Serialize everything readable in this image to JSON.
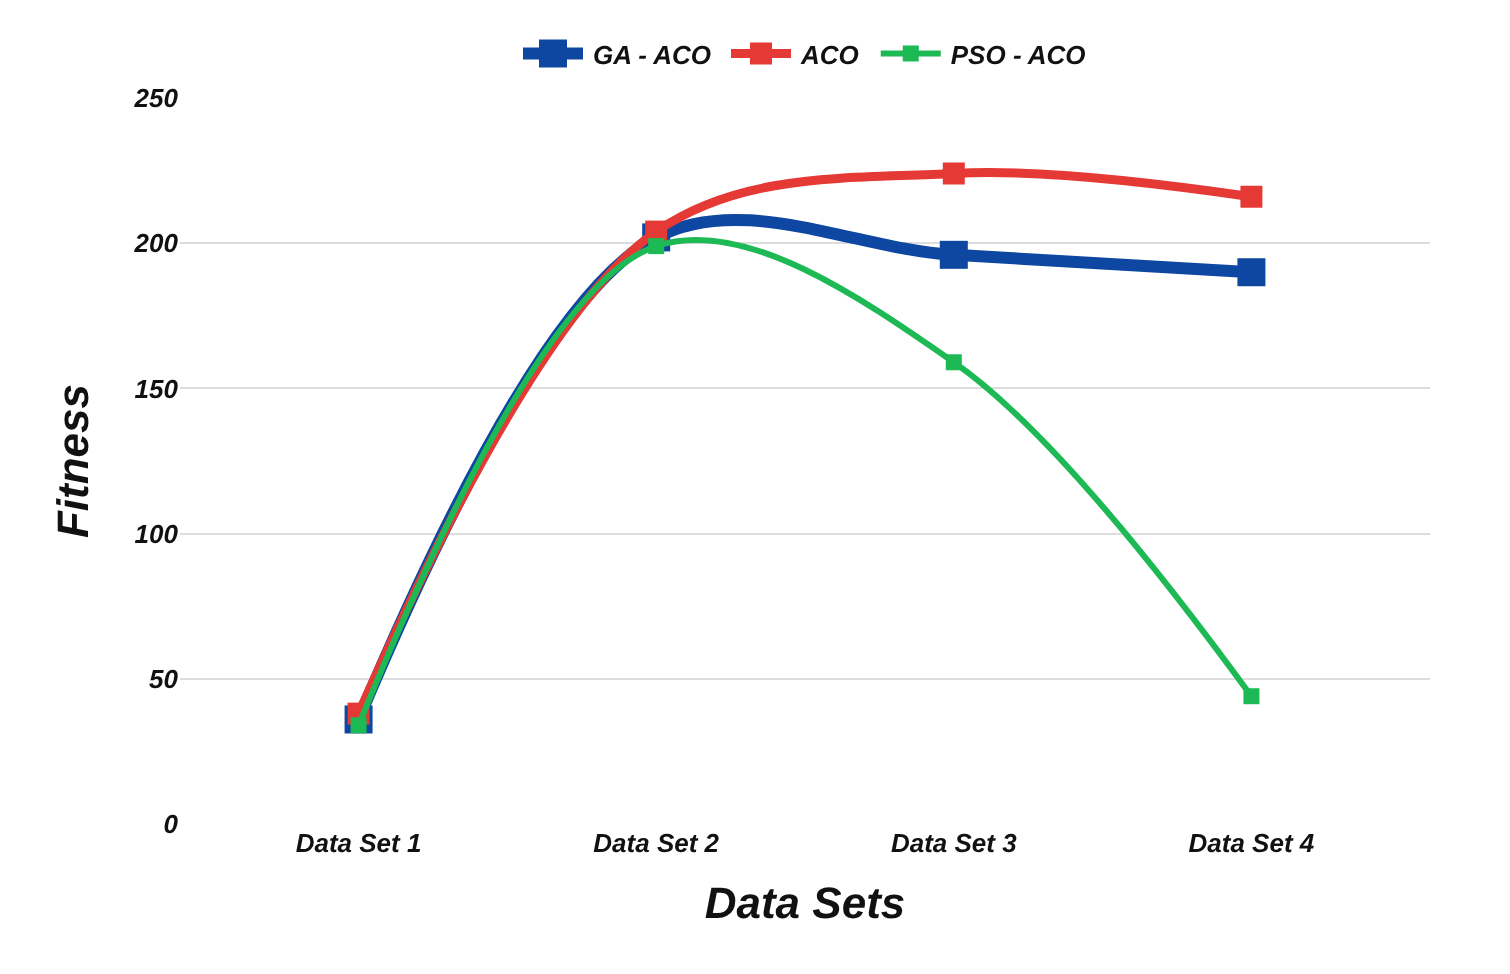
{
  "chart_data": {
    "type": "line",
    "xlabel": "Data Sets",
    "ylabel": "Fitness",
    "categories": [
      "Data Set 1",
      "Data Set 2",
      "Data Set 3",
      "Data Set 4"
    ],
    "series": [
      {
        "name": "GA - ACO",
        "color": "#0d47a1",
        "values": [
          36,
          202,
          196,
          190
        ]
      },
      {
        "name": "ACO",
        "color": "#e53935",
        "values": [
          38,
          204,
          224,
          216
        ]
      },
      {
        "name": "PSO - ACO",
        "color": "#1db954",
        "values": [
          34,
          199,
          159,
          44
        ]
      }
    ],
    "ylim": [
      0,
      250
    ],
    "yticks": [
      0,
      50,
      100,
      150,
      200,
      250
    ],
    "grid": "y",
    "legend": "top",
    "marker": "square",
    "line_style": "solid"
  }
}
